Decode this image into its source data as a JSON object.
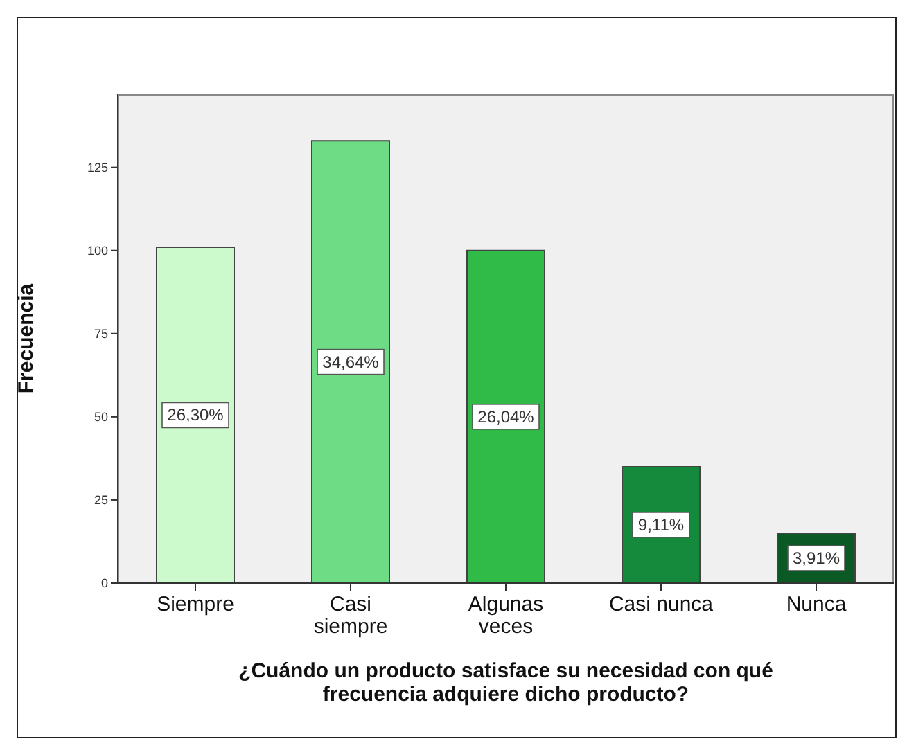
{
  "chart_data": {
    "type": "bar",
    "xlabel": "¿Cuándo un producto satisface su necesidad con qué frecuencia adquiere dicho producto?",
    "ylabel": "Frecuencia",
    "categories": [
      "Siempre",
      "Casi siempre",
      "Algunas veces",
      "Casi nunca",
      "Nunca"
    ],
    "values": [
      101,
      133,
      100,
      35,
      15
    ],
    "colors": [
      "#ccfacc",
      "#6ddc84",
      "#30bb48",
      "#168a3c",
      "#0b5a26"
    ],
    "annotations": [
      "26,30%",
      "34,64%",
      "26,04%",
      "9,11%",
      "3,91%"
    ],
    "ylim": [
      0,
      147
    ],
    "yticks": [
      0,
      25,
      50,
      75,
      100,
      125
    ],
    "grid": false,
    "legend": false
  }
}
